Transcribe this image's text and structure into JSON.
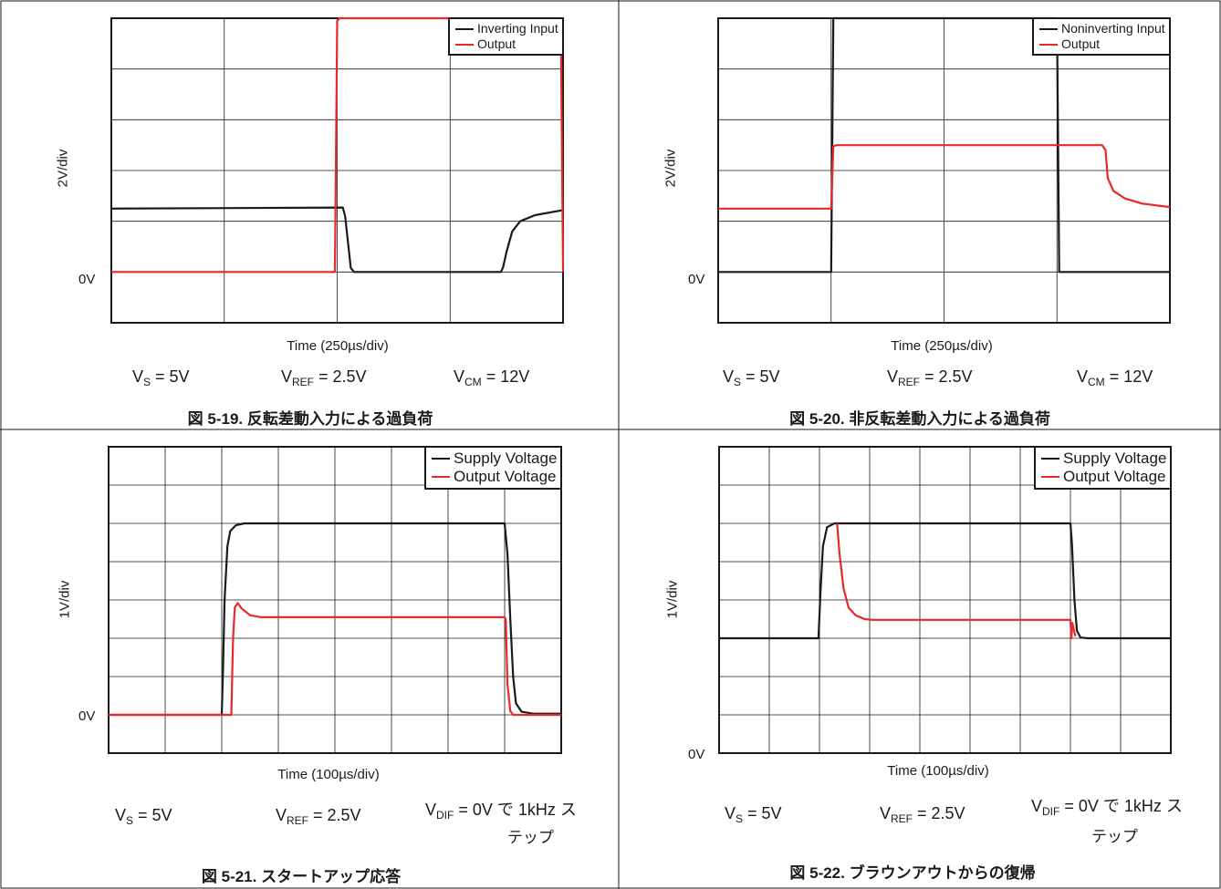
{
  "colors": {
    "black": "#1a1a1a",
    "red": "#e8282b",
    "grid": "#1a1a1a"
  },
  "chart_data": [
    {
      "type": "line",
      "xlabel": "Time (250µs/div)",
      "ylabel": "2V/div",
      "zero_label": "0V",
      "divisions": {
        "x": 4,
        "y": 6
      },
      "xlim": [
        0,
        4
      ],
      "ylim": [
        -1,
        5
      ],
      "unit_note": "x in divisions of 250µs, y in divisions of 2V",
      "legend": {
        "position": "top-right",
        "font": 14
      },
      "series": [
        {
          "name": "Inverting Input",
          "color": "#1a1a1a",
          "points": [
            [
              0,
              1.25
            ],
            [
              2.05,
              1.27
            ],
            [
              2.07,
              1.1
            ],
            [
              2.12,
              0.08
            ],
            [
              2.15,
              0
            ],
            [
              3.45,
              0
            ],
            [
              3.47,
              0.1
            ],
            [
              3.5,
              0.4
            ],
            [
              3.55,
              0.8
            ],
            [
              3.62,
              1.0
            ],
            [
              3.75,
              1.12
            ],
            [
              4.0,
              1.22
            ]
          ]
        },
        {
          "name": "Output",
          "color": "#e8282b",
          "points": [
            [
              0,
              0
            ],
            [
              1.98,
              0
            ],
            [
              2.0,
              4.95
            ],
            [
              2.02,
              5.0
            ],
            [
              3.98,
              5.0
            ],
            [
              4.0,
              0.05
            ],
            [
              4.03,
              0
            ],
            [
              4.0,
              0
            ],
            [
              8.0,
              0
            ]
          ]
        }
      ],
      "conditions": {
        "vs": {
          "main": "V",
          "sub": "S",
          "rest": " = 5V"
        },
        "vref": {
          "main": "V",
          "sub": "REF",
          "rest": " = 2.5V"
        },
        "third": {
          "main": "V",
          "sub": "CM",
          "rest": " = 12V",
          "tail": ""
        }
      },
      "caption": "図 5-19. 反転差動入力による過負荷"
    },
    {
      "type": "line",
      "xlabel": "Time (250µs/div)",
      "ylabel": "2V/div",
      "zero_label": "0V",
      "divisions": {
        "x": 4,
        "y": 6
      },
      "xlim": [
        0,
        4
      ],
      "ylim": [
        -1,
        5
      ],
      "unit_note": "x in divisions of 250µs, y in divisions of 2V",
      "legend": {
        "position": "top-right",
        "font": 14
      },
      "series": [
        {
          "name": "Noninverting Input",
          "color": "#1a1a1a",
          "points": [
            [
              0,
              0
            ],
            [
              1.0,
              0
            ],
            [
              1.02,
              5.0
            ],
            [
              3.0,
              5.0
            ],
            [
              3.02,
              0
            ],
            [
              4.0,
              0
            ]
          ]
        },
        {
          "name": "Output",
          "color": "#e8282b",
          "points": [
            [
              0,
              1.25
            ],
            [
              1.0,
              1.25
            ],
            [
              1.02,
              2.48
            ],
            [
              1.05,
              2.5
            ],
            [
              3.4,
              2.5
            ],
            [
              3.43,
              2.4
            ],
            [
              3.45,
              1.85
            ],
            [
              3.5,
              1.6
            ],
            [
              3.6,
              1.45
            ],
            [
              3.75,
              1.35
            ],
            [
              4.0,
              1.28
            ]
          ]
        }
      ],
      "conditions": {
        "vs": {
          "main": "V",
          "sub": "S",
          "rest": " = 5V"
        },
        "vref": {
          "main": "V",
          "sub": "REF",
          "rest": " = 2.5V"
        },
        "third": {
          "main": "V",
          "sub": "CM",
          "rest": " = 12V",
          "tail": ""
        }
      },
      "caption": "図 5-20. 非反転差動入力による過負荷"
    },
    {
      "type": "line",
      "xlabel": "Time (100µs/div)",
      "ylabel": "1V/div",
      "zero_label": "0V",
      "divisions": {
        "x": 8,
        "y": 8
      },
      "xlim": [
        0,
        8
      ],
      "ylim": [
        -1,
        7
      ],
      "unit_note": "x in divisions of 100µs, y in divisions of 1V",
      "legend": {
        "position": "top-right",
        "font": 17
      },
      "series": [
        {
          "name": "Supply Voltage",
          "color": "#1a1a1a",
          "points": [
            [
              0,
              0
            ],
            [
              2.0,
              0
            ],
            [
              2.02,
              1.0
            ],
            [
              2.05,
              3.0
            ],
            [
              2.1,
              4.4
            ],
            [
              2.15,
              4.8
            ],
            [
              2.25,
              4.95
            ],
            [
              2.4,
              5.0
            ],
            [
              7.0,
              5.0
            ],
            [
              7.05,
              4.2
            ],
            [
              7.1,
              2.5
            ],
            [
              7.15,
              1.0
            ],
            [
              7.2,
              0.3
            ],
            [
              7.3,
              0.08
            ],
            [
              7.5,
              0.03
            ],
            [
              8.0,
              0.03
            ]
          ]
        },
        {
          "name": "Output Voltage",
          "color": "#e8282b",
          "points": [
            [
              0,
              0
            ],
            [
              2.17,
              0
            ],
            [
              2.2,
              2.0
            ],
            [
              2.23,
              2.8
            ],
            [
              2.28,
              2.92
            ],
            [
              2.35,
              2.78
            ],
            [
              2.5,
              2.6
            ],
            [
              2.7,
              2.55
            ],
            [
              7.0,
              2.55
            ],
            [
              7.02,
              2.5
            ],
            [
              7.05,
              0.8
            ],
            [
              7.1,
              0.1
            ],
            [
              7.15,
              0
            ],
            [
              8.0,
              0
            ]
          ]
        }
      ],
      "conditions": {
        "vs": {
          "main": "V",
          "sub": "S",
          "rest": " = 5V"
        },
        "vref": {
          "main": "V",
          "sub": "REF",
          "rest": " = 2.5V"
        },
        "third": {
          "main": "V",
          "sub": "DIF",
          "rest": " = 0V で 1kHz ス",
          "tail": "テップ"
        }
      },
      "caption": "図 5-21. スタートアップ応答"
    },
    {
      "type": "line",
      "xlabel": "Time (100µs/div)",
      "ylabel": "1V/div",
      "zero_label": "0V",
      "divisions": {
        "x": 9,
        "y": 8
      },
      "xlim": [
        0,
        9
      ],
      "ylim": [
        -1,
        7
      ],
      "unit_note": "x in divisions of 100µs, y in divisions of 1V",
      "legend": {
        "position": "top-right",
        "font": 17
      },
      "series": [
        {
          "name": "Supply Voltage",
          "color": "#1a1a1a",
          "points": [
            [
              0,
              2.0
            ],
            [
              1.98,
              2.0
            ],
            [
              2.02,
              3.2
            ],
            [
              2.07,
              4.4
            ],
            [
              2.15,
              4.9
            ],
            [
              2.3,
              5.0
            ],
            [
              7.0,
              5.0
            ],
            [
              7.03,
              4.5
            ],
            [
              7.08,
              3.0
            ],
            [
              7.13,
              2.2
            ],
            [
              7.2,
              2.02
            ],
            [
              7.35,
              2.0
            ],
            [
              9.0,
              2.0
            ]
          ]
        },
        {
          "name": "Output Voltage",
          "color": "#e8282b",
          "points": [
            [
              2.35,
              5.0
            ],
            [
              2.4,
              4.2
            ],
            [
              2.48,
              3.3
            ],
            [
              2.58,
              2.8
            ],
            [
              2.72,
              2.6
            ],
            [
              2.9,
              2.5
            ],
            [
              3.05,
              2.48
            ],
            [
              7.0,
              2.48
            ],
            [
              7.02,
              2.0
            ],
            [
              7.04,
              2.4
            ],
            [
              7.07,
              2.2
            ],
            [
              7.1,
              2.05
            ]
          ]
        }
      ],
      "conditions": {
        "vs": {
          "main": "V",
          "sub": "S",
          "rest": " = 5V"
        },
        "vref": {
          "main": "V",
          "sub": "REF",
          "rest": " = 2.5V"
        },
        "third": {
          "main": "V",
          "sub": "DIF",
          "rest": " = 0V で 1kHz ス",
          "tail": "テップ"
        }
      },
      "caption": "図 5-22. ブラウンアウトからの復帰"
    }
  ]
}
